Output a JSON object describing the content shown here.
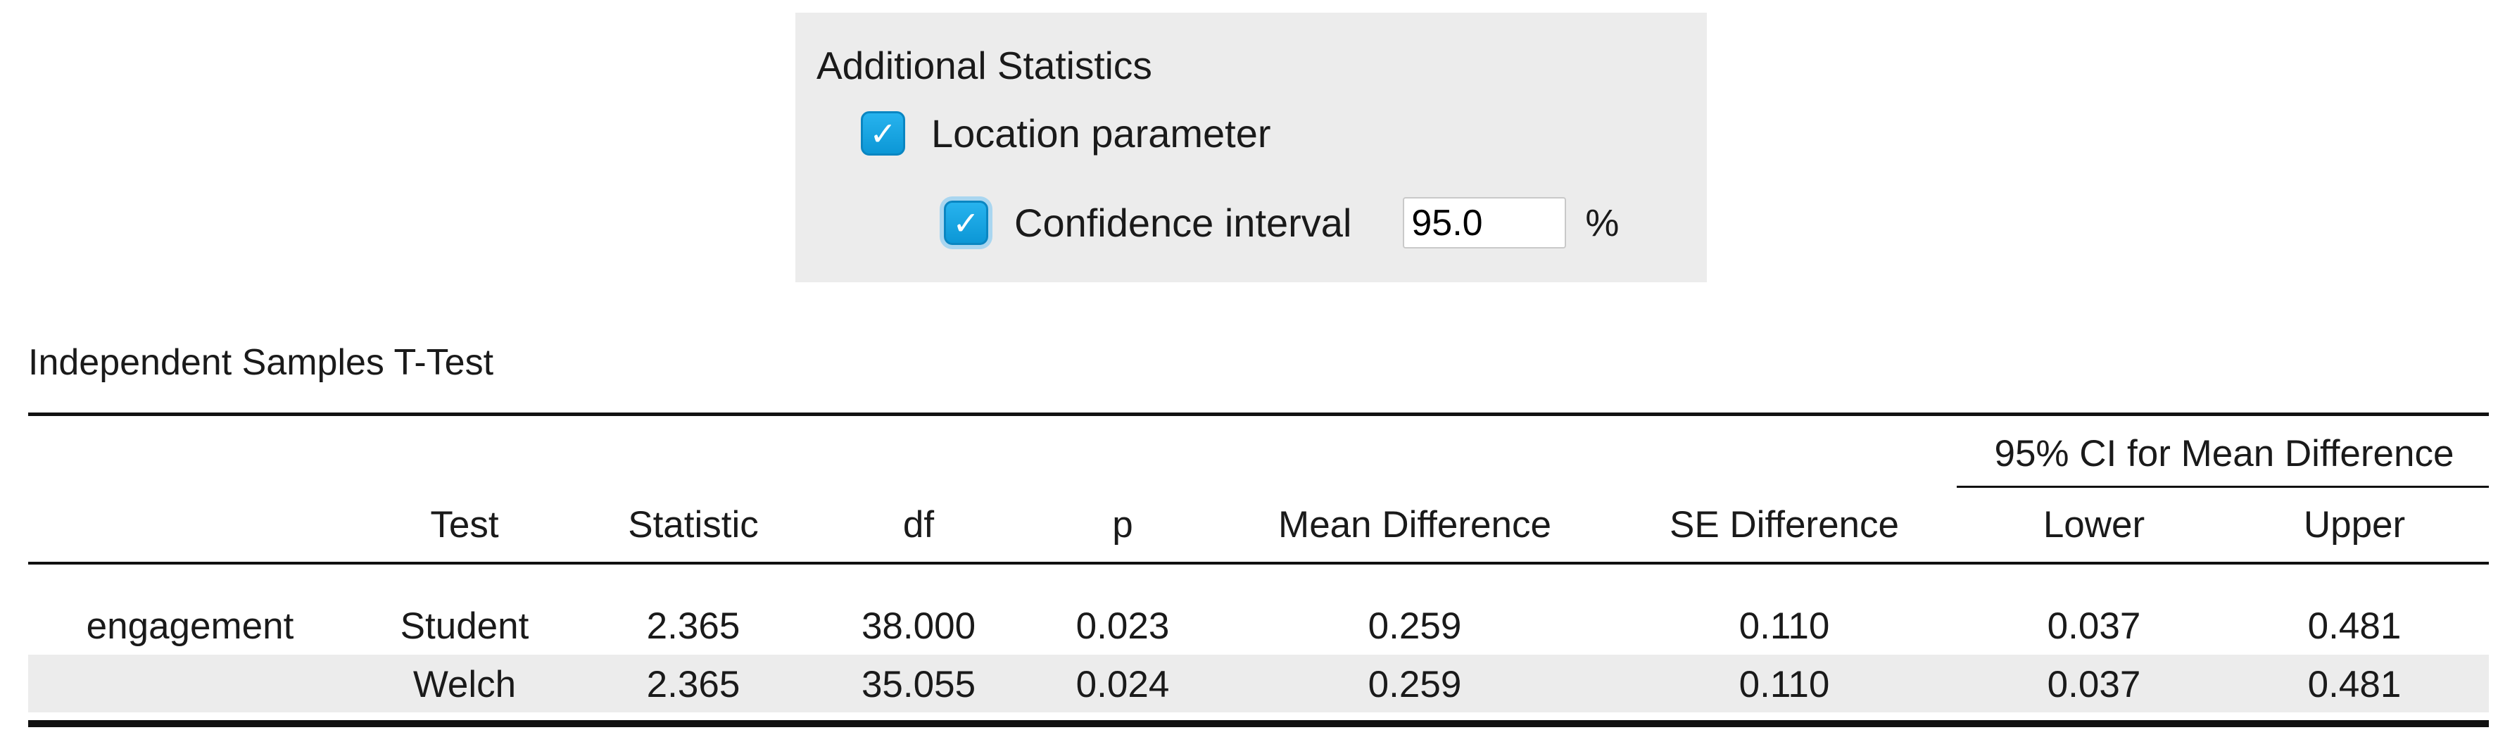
{
  "panel": {
    "title": "Additional Statistics",
    "location_parameter": {
      "label": "Location parameter",
      "checked": true
    },
    "confidence_interval": {
      "label": "Confidence interval",
      "checked": true,
      "value": "95.0",
      "unit": "%"
    }
  },
  "table": {
    "title": "Independent Samples T-Test",
    "group_header": "95% CI for Mean Difference",
    "columns": [
      "",
      "Test",
      "Statistic",
      "df",
      "p",
      "Mean Difference",
      "SE Difference",
      "Lower",
      "Upper"
    ],
    "rows": [
      [
        "engagement",
        "Student",
        "2.365",
        "38.000",
        "0.023",
        "0.259",
        "0.110",
        "0.037",
        "0.481"
      ],
      [
        "",
        "Welch",
        "2.365",
        "35.055",
        "0.024",
        "0.259",
        "0.110",
        "0.037",
        "0.481"
      ]
    ]
  },
  "colors": {
    "accent": "#0c97d6",
    "panel_background": "#ececec",
    "row_stripe": "#ececec",
    "rule": "#111111"
  },
  "icons": {
    "checkbox": "checkmark-icon"
  }
}
